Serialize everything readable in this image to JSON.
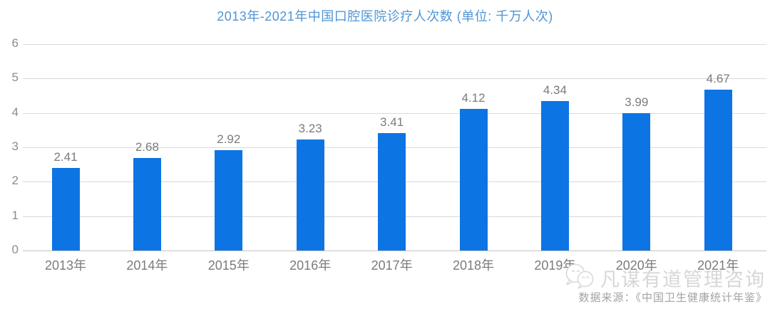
{
  "page": {
    "background": "#ffffff"
  },
  "chart_data": {
    "type": "bar",
    "title": "2013年-2021年中国口腔医院诊疗人次数 (单位: 千万人次)",
    "title_color": "#4f95d5",
    "categories": [
      "2013年",
      "2014年",
      "2015年",
      "2016年",
      "2017年",
      "2018年",
      "2019年",
      "2020年",
      "2021年"
    ],
    "values": [
      2.41,
      2.68,
      2.92,
      3.23,
      3.41,
      4.12,
      4.34,
      3.99,
      4.67
    ],
    "xlabel": "",
    "ylabel": "",
    "ylim": [
      0,
      6
    ],
    "yticks": [
      0,
      1,
      2,
      3,
      4,
      5,
      6
    ],
    "grid": true,
    "legend_position": "none",
    "bar_color": "#0d74e4",
    "gridline_color": "#d9d9d9",
    "value_label_color": "#7b7b7b",
    "tick_label_color": "#8c8c8c"
  },
  "footer": {
    "watermark": "凡谋有道管理咨询",
    "watermark_icon": "chat-bubbles-logo",
    "source": "数据来源：《中国卫生健康统计年鉴》"
  }
}
